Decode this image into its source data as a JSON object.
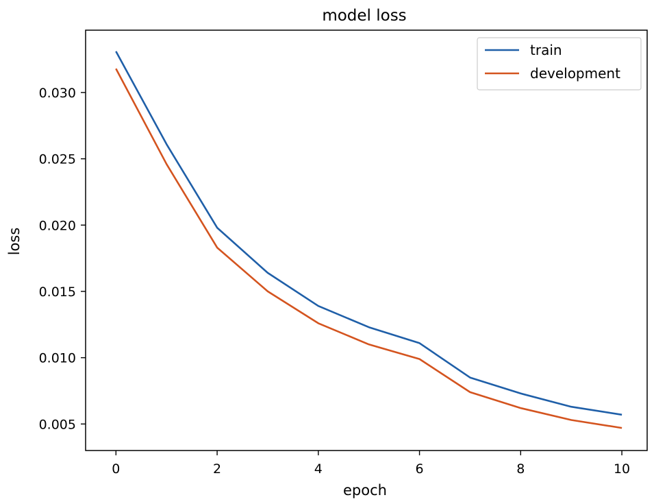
{
  "chart_data": {
    "type": "line",
    "title": "model loss",
    "xlabel": "epoch",
    "ylabel": "loss",
    "x": [
      0,
      1,
      2,
      3,
      4,
      5,
      6,
      7,
      8,
      9,
      10
    ],
    "series": [
      {
        "name": "train",
        "color": "#1f5fa8",
        "values": [
          0.0331,
          0.0261,
          0.0198,
          0.0164,
          0.0139,
          0.0123,
          0.0111,
          0.0085,
          0.0073,
          0.0063,
          0.0057
        ]
      },
      {
        "name": "development",
        "color": "#d4541f",
        "values": [
          0.0318,
          0.0246,
          0.0183,
          0.015,
          0.0126,
          0.011,
          0.0099,
          0.0074,
          0.0062,
          0.0053,
          0.0047
        ]
      }
    ],
    "xlim": [
      -0.6,
      10.5
    ],
    "ylim": [
      0.003,
      0.0347
    ],
    "xticks": [
      0,
      2,
      4,
      6,
      8,
      10
    ],
    "yticks": [
      0.005,
      0.01,
      0.015,
      0.02,
      0.025,
      0.03
    ],
    "xtick_labels": [
      "0",
      "2",
      "4",
      "6",
      "8",
      "10"
    ],
    "ytick_labels": [
      "0.005",
      "0.010",
      "0.015",
      "0.020",
      "0.025",
      "0.030"
    ],
    "legend": {
      "placement": "top-right"
    },
    "grid": false
  }
}
